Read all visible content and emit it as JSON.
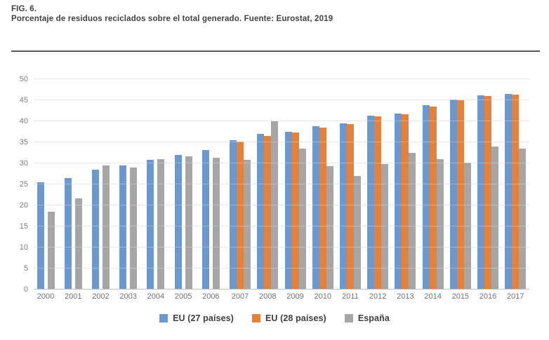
{
  "header": {
    "fig_label": "FIG. 6.",
    "title": "Porcentaje de residuos reciclados sobre el total generado. Fuente: Eurostat, 2019"
  },
  "chart_data": {
    "type": "bar",
    "title": "Porcentaje de residuos reciclados sobre el total generado",
    "source": "Fuente: Eurostat, 2019",
    "categories": [
      "2000",
      "2001",
      "2002",
      "2003",
      "2004",
      "2005",
      "2006",
      "2007",
      "2008",
      "2009",
      "2010",
      "2011",
      "2012",
      "2013",
      "2014",
      "2015",
      "2016",
      "2017"
    ],
    "series": [
      {
        "name": "EU (27 países)",
        "color": "#6c98d0",
        "values": [
          25.3,
          26.4,
          28.3,
          29.4,
          30.6,
          31.9,
          33.0,
          35.3,
          36.8,
          37.4,
          38.6,
          39.4,
          41.2,
          41.7,
          43.6,
          45.0,
          46.0,
          46.4
        ]
      },
      {
        "name": "EU (28 países)",
        "color": "#e6813b",
        "values": [
          null,
          null,
          null,
          null,
          null,
          null,
          null,
          35.0,
          36.4,
          37.2,
          38.3,
          39.2,
          41.0,
          41.5,
          43.4,
          44.8,
          45.8,
          46.2
        ]
      },
      {
        "name": "España",
        "color": "#a6a6a6",
        "values": [
          18.4,
          21.5,
          29.3,
          28.9,
          30.9,
          31.5,
          31.1,
          30.6,
          39.8,
          33.3,
          29.1,
          26.8,
          29.7,
          32.4,
          30.8,
          30.0,
          33.8,
          33.4
        ]
      }
    ],
    "ylabel": "",
    "xlabel": "",
    "ylim": [
      0,
      50
    ],
    "yticks": [
      0,
      5,
      10,
      15,
      20,
      25,
      30,
      35,
      40,
      45,
      50
    ],
    "grid": true,
    "legend_position": "bottom"
  }
}
